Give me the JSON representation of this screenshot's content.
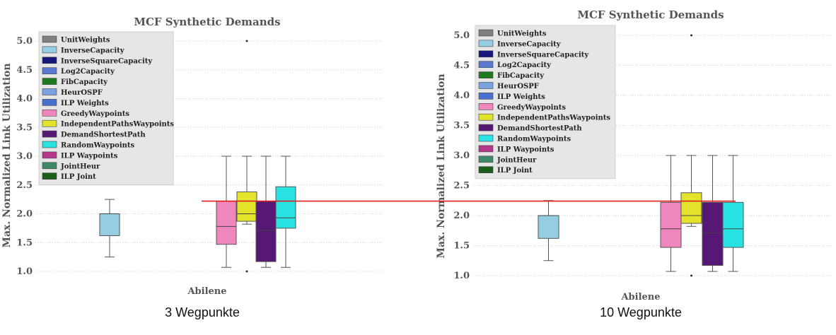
{
  "captions": {
    "left": "3 Wegpunkte",
    "right": "10 Wegpunkte"
  },
  "chart_data": [
    {
      "type": "box",
      "title": "MCF Synthetic Demands",
      "xlabel": "",
      "ylabel": "Max. Normalized Link Utilization",
      "categories": [
        "Abilene"
      ],
      "ylim": [
        0.9,
        5.2
      ],
      "yticks": [
        "1.0",
        "1.5",
        "2.0",
        "2.5",
        "3.0",
        "3.5",
        "4.0",
        "4.5",
        "5.0"
      ],
      "grid": true,
      "legend_position": "upper-left",
      "series": [
        {
          "name": "UnitWeights",
          "color": "#808080",
          "box": null
        },
        {
          "name": "InverseCapacity",
          "color": "#95cde2",
          "box": {
            "min": 1.25,
            "q1": 1.62,
            "median": 2.0,
            "q3": 2.0,
            "max": 2.25,
            "outliers": []
          }
        },
        {
          "name": "InverseSquareCapacity",
          "color": "#17177a",
          "box": null
        },
        {
          "name": "Log2Capacity",
          "color": "#5a78d0",
          "box": null
        },
        {
          "name": "FibCapacity",
          "color": "#1f7a1f",
          "box": null
        },
        {
          "name": "HeurOSPF",
          "color": "#7ba2e0",
          "box": null
        },
        {
          "name": "ILP Weights",
          "color": "#4a6fcf",
          "box": null
        },
        {
          "name": "GreedyWaypoints",
          "color": "#ef86bd",
          "box": {
            "min": 1.07,
            "q1": 1.47,
            "median": 1.78,
            "q3": 2.22,
            "max": 3.0,
            "outliers": []
          }
        },
        {
          "name": "IndependentPathsWaypoints",
          "color": "#e3e32c",
          "box": {
            "min": 1.82,
            "q1": 1.87,
            "median": 2.0,
            "q3": 2.38,
            "max": 3.0,
            "outliers": [
              1.0,
              5.0
            ]
          }
        },
        {
          "name": "DemandShortestPath",
          "color": "#571774",
          "box": {
            "min": 1.07,
            "q1": 1.17,
            "median": 1.71,
            "q3": 2.22,
            "max": 3.0,
            "outliers": []
          }
        },
        {
          "name": "RandomWaypoints",
          "color": "#29e3e3",
          "box": {
            "min": 1.07,
            "q1": 1.75,
            "median": 1.93,
            "q3": 2.47,
            "max": 3.0,
            "outliers": []
          }
        },
        {
          "name": "ILP Waypoints",
          "color": "#b5388a",
          "box": null
        },
        {
          "name": "JointHeur",
          "color": "#3f8a66",
          "box": null
        },
        {
          "name": "ILP Joint",
          "color": "#1a5e1a",
          "box": null
        }
      ]
    },
    {
      "type": "box",
      "title": "MCF Synthetic Demands",
      "xlabel": "",
      "ylabel": "Max. Normalized Link Utilization",
      "categories": [
        "Abilene"
      ],
      "ylim": [
        0.9,
        5.2
      ],
      "yticks": [
        "1.0",
        "1.5",
        "2.0",
        "2.5",
        "3.0",
        "3.5",
        "4.0",
        "4.5",
        "5.0"
      ],
      "grid": true,
      "legend_position": "upper-left",
      "series": [
        {
          "name": "UnitWeights",
          "color": "#808080",
          "box": null
        },
        {
          "name": "InverseCapacity",
          "color": "#95cde2",
          "box": {
            "min": 1.25,
            "q1": 1.62,
            "median": 2.0,
            "q3": 2.0,
            "max": 2.25,
            "outliers": []
          }
        },
        {
          "name": "InverseSquareCapacity",
          "color": "#17177a",
          "box": null
        },
        {
          "name": "Log2Capacity",
          "color": "#5a78d0",
          "box": null
        },
        {
          "name": "FibCapacity",
          "color": "#1f7a1f",
          "box": null
        },
        {
          "name": "HeurOSPF",
          "color": "#7ba2e0",
          "box": null
        },
        {
          "name": "ILP Weights",
          "color": "#4a6fcf",
          "box": null
        },
        {
          "name": "GreedyWaypoints",
          "color": "#ef86bd",
          "box": {
            "min": 1.07,
            "q1": 1.47,
            "median": 1.78,
            "q3": 2.22,
            "max": 3.0,
            "outliers": []
          }
        },
        {
          "name": "IndependentPathsWaypoints",
          "color": "#e3e32c",
          "box": {
            "min": 1.82,
            "q1": 1.87,
            "median": 2.0,
            "q3": 2.38,
            "max": 3.0,
            "outliers": [
              1.0,
              5.0
            ]
          }
        },
        {
          "name": "DemandShortestPath",
          "color": "#571774",
          "box": {
            "min": 1.07,
            "q1": 1.17,
            "median": 1.71,
            "q3": 2.22,
            "max": 3.0,
            "outliers": []
          }
        },
        {
          "name": "RandomWaypoints",
          "color": "#29e3e3",
          "box": {
            "min": 1.07,
            "q1": 1.47,
            "median": 1.78,
            "q3": 2.22,
            "max": 3.0,
            "outliers": []
          }
        },
        {
          "name": "ILP Waypoints",
          "color": "#b5388a",
          "box": null
        },
        {
          "name": "JointHeur",
          "color": "#3f8a66",
          "box": null
        },
        {
          "name": "ILP Joint",
          "color": "#1a5e1a",
          "box": null
        }
      ]
    }
  ],
  "reference_line": {
    "value": 2.24,
    "color": "#e02020"
  }
}
